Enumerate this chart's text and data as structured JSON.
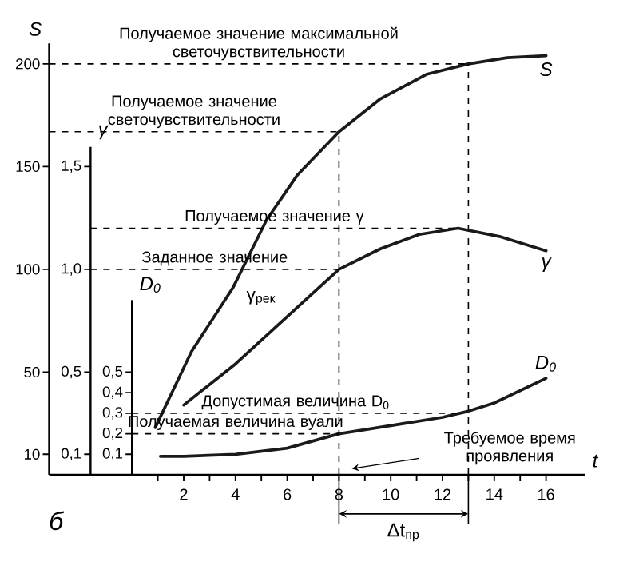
{
  "chart_data": {
    "type": "line",
    "xlabel": "t",
    "ylabel": "S",
    "y2label": "γ",
    "y3label": "D$_{0}$",
    "xlim": [
      -3.2,
      17.5
    ],
    "xticks": [
      {
        "value": 1,
        "label": null
      },
      2,
      {
        "value": 3,
        "label": null
      },
      4,
      {
        "value": 5,
        "label": null
      },
      6,
      {
        "value": 7,
        "label": null
      },
      8,
      {
        "value": 9,
        "label": null
      },
      10,
      {
        "value": 11,
        "label": null
      },
      12,
      {
        "value": 13,
        "label": null
      },
      14,
      {
        "value": 15,
        "label": null
      },
      16
    ],
    "ylim": [
      0,
      210
    ],
    "yticks": [
      10,
      50,
      100,
      150,
      200
    ],
    "y2lim": [
      0,
      2.1
    ],
    "y2ticks": [
      {
        "value": 0.1,
        "label": "0,1"
      },
      {
        "value": 0.5,
        "label": "0,5"
      },
      {
        "value": 1.0,
        "label": "1,0"
      },
      {
        "value": 1.5,
        "label": "1,5"
      }
    ],
    "y3lim": [
      0,
      2.1
    ],
    "y3ticks": [
      {
        "value": 0.1,
        "label": "0,1"
      },
      {
        "value": 0.2,
        "label": "0,2"
      },
      {
        "value": 0.3,
        "label": "0,3"
      },
      {
        "value": 0.4,
        "label": "0,4"
      },
      {
        "value": 0.5,
        "label": "0,5"
      }
    ],
    "series": [
      {
        "name": "S",
        "color": "#1a1a1a",
        "axis": "y",
        "x": [
          0.9,
          2.3,
          3.9,
          5.2,
          6.4,
          8,
          9.6,
          11.4,
          13,
          14.5,
          16
        ],
        "values": [
          23,
          60,
          91,
          124,
          146,
          167,
          183,
          195,
          200,
          203,
          204
        ]
      },
      {
        "name": "γ",
        "color": "#1a1a1a",
        "axis": "y2",
        "x": [
          2,
          4,
          6,
          8,
          9.6,
          11.1,
          12.6,
          14.2,
          16
        ],
        "values": [
          0.34,
          0.54,
          0.77,
          1.0,
          1.1,
          1.17,
          1.2,
          1.16,
          1.09
        ]
      },
      {
        "name": "D$_{0}$",
        "color": "#1a1a1a",
        "axis": "y3",
        "x": [
          1.1,
          2,
          4,
          6,
          8,
          10,
          12,
          13,
          14,
          16
        ],
        "values": [
          0.09,
          0.09,
          0.1,
          0.13,
          0.2,
          0.24,
          0.28,
          0.31,
          0.35,
          0.47
        ]
      }
    ],
    "ref_lines": [
      {
        "axis": "y",
        "value": 200,
        "label": "Получаемое значение максимальной светочувствительности",
        "line_style": "dashed"
      },
      {
        "axis": "y",
        "value": 167,
        "label": "Получаемое значение светочувствительности",
        "line_style": "dashed"
      },
      {
        "axis": "y2",
        "value": 1.2,
        "label": "Получаемое значение γ",
        "line_style": "dashed"
      },
      {
        "axis": "y2",
        "value": 1.0,
        "label": "Заданное значение",
        "line_style": "dashed"
      },
      {
        "axis": "y3",
        "value": 0.3,
        "label": "Допустимая величина D$_{0}$",
        "line_style": "dashed"
      },
      {
        "axis": "y3",
        "value": 0.2,
        "label": "Получаемая величина вуали",
        "line_style": "dashed"
      },
      {
        "axis": "x",
        "value": 8,
        "line_style": "dashed"
      },
      {
        "axis": "x",
        "value": 13,
        "line_style": "dashed"
      }
    ],
    "annotations": [
      "γ$_{рек}$",
      "Требуемое время проявления",
      "Δt$_{пр}$",
      "б"
    ]
  }
}
